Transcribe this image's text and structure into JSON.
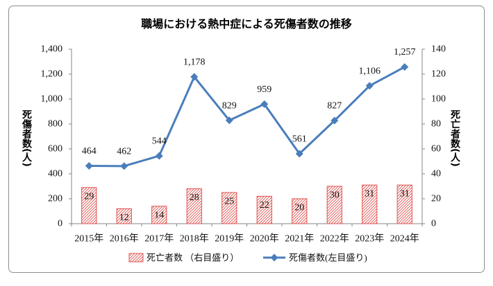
{
  "chart_data": {
    "type": "bar",
    "title": "職場における熱中症による死傷者数の推移",
    "categories": [
      "2015年",
      "2016年",
      "2017年",
      "2018年",
      "2019年",
      "2020年",
      "2021年",
      "2022年",
      "2023年",
      "2024年"
    ],
    "series": [
      {
        "name": "死亡者数 （右目盛り）",
        "type": "bar",
        "axis": "right",
        "fill": "diagonal-hatch",
        "color": "#e0504d",
        "values": [
          29,
          12,
          14,
          28,
          25,
          22,
          20,
          30,
          31,
          31
        ],
        "data_labels": [
          "29",
          "12",
          "14",
          "28",
          "25",
          "22",
          "20",
          "30",
          "31",
          "31"
        ]
      },
      {
        "name": "死傷者数(左目盛り)",
        "type": "line",
        "axis": "left",
        "marker": "diamond",
        "color": "#4a7ebb",
        "values": [
          464,
          462,
          544,
          1178,
          829,
          959,
          561,
          827,
          1106,
          1257
        ],
        "data_labels": [
          "464",
          "462",
          "544",
          "1,178",
          "829",
          "959",
          "561",
          "827",
          "1,106",
          "1,257"
        ]
      }
    ],
    "ylabel": "死傷者数(人)",
    "ylim": [
      0,
      1400
    ],
    "yticks": [
      0,
      200,
      400,
      600,
      800,
      1000,
      1200,
      1400
    ],
    "ytick_labels": [
      "0",
      "200",
      "400",
      "600",
      "800",
      "1,000",
      "1,200",
      "1,400"
    ],
    "y2label": "死亡者数(人)",
    "y2lim": [
      0,
      140
    ],
    "y2ticks": [
      0,
      20,
      40,
      60,
      80,
      100,
      120,
      140
    ],
    "y2tick_labels": [
      "0",
      "20",
      "40",
      "60",
      "80",
      "100",
      "120",
      "140"
    ],
    "legend": "bottom",
    "grid": false
  }
}
